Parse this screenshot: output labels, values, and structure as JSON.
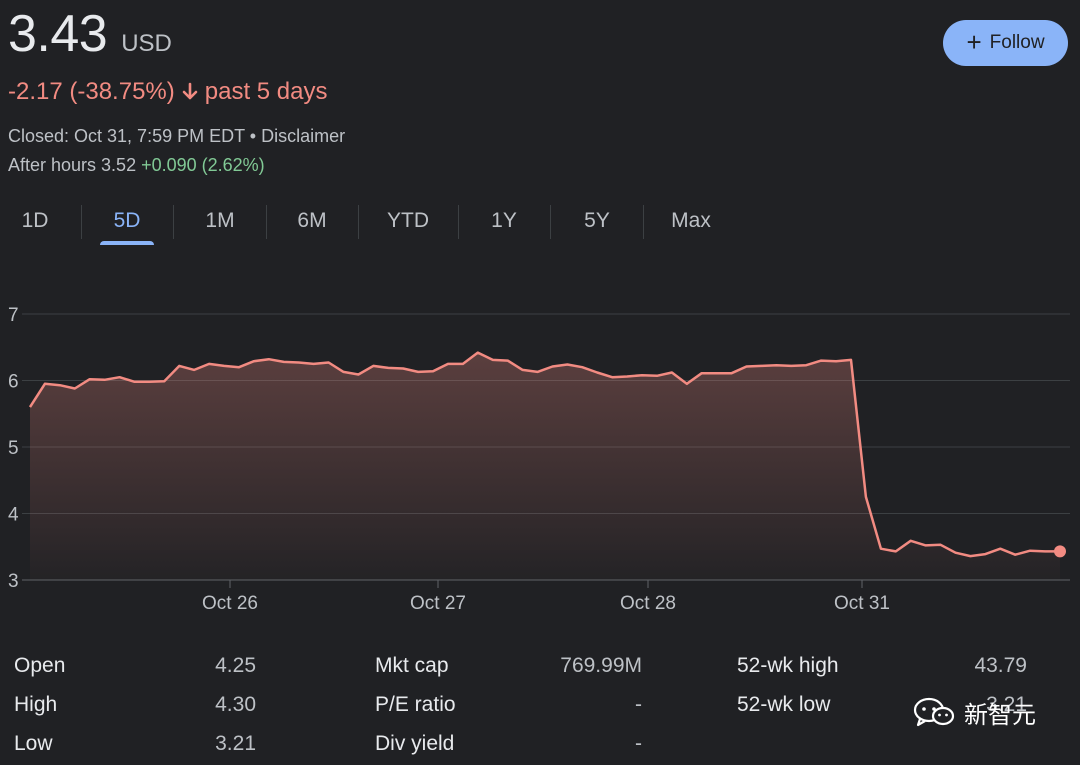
{
  "quote": {
    "price": "3.43",
    "currency": "USD",
    "change": "-2.17 (-38.75%)",
    "change_period": "past 5 days",
    "closed_text": "Closed: Oct 31, 7:59 PM EDT • Disclaimer",
    "after_hours_label": "After hours 3.52",
    "after_hours_change": "+0.090 (2.62%)"
  },
  "follow_label": "Follow",
  "tabs": [
    "1D",
    "5D",
    "1M",
    "6M",
    "YTD",
    "1Y",
    "5Y",
    "Max"
  ],
  "active_tab": "5D",
  "colors": {
    "line": "#f28b82",
    "accent": "#8ab4f8",
    "positive": "#81c995",
    "background": "#202124"
  },
  "chart_data": {
    "type": "area",
    "y_ticks": [
      "7",
      "6",
      "5",
      "4",
      "3"
    ],
    "ylim": [
      3,
      7
    ],
    "x_tick_labels": [
      "Oct 26",
      "Oct 27",
      "Oct 28",
      "Oct 31"
    ],
    "grid": true,
    "values": [
      5.6,
      5.95,
      5.93,
      5.88,
      6.02,
      6.01,
      6.05,
      5.98,
      5.98,
      5.99,
      6.22,
      6.16,
      6.25,
      6.22,
      6.2,
      6.29,
      6.32,
      6.28,
      6.27,
      6.25,
      6.27,
      6.13,
      6.09,
      6.22,
      6.19,
      6.18,
      6.13,
      6.14,
      6.25,
      6.25,
      6.42,
      6.31,
      6.3,
      6.16,
      6.13,
      6.21,
      6.24,
      6.2,
      6.12,
      6.05,
      6.06,
      6.08,
      6.07,
      6.12,
      5.95,
      6.11,
      6.11,
      6.11,
      6.21,
      6.22,
      6.23,
      6.22,
      6.23,
      6.3,
      6.29,
      6.31,
      4.25,
      3.47,
      3.43,
      3.59,
      3.52,
      3.53,
      3.41,
      3.36,
      3.39,
      3.47,
      3.38,
      3.44,
      3.43,
      3.43
    ]
  },
  "stats": {
    "col1": [
      [
        "Open",
        "4.25"
      ],
      [
        "High",
        "4.30"
      ],
      [
        "Low",
        "3.21"
      ]
    ],
    "col2": [
      [
        "Mkt cap",
        "769.99M"
      ],
      [
        "P/E ratio",
        "-"
      ],
      [
        "Div yield",
        "-"
      ]
    ],
    "col3": [
      [
        "52-wk high",
        "43.79"
      ],
      [
        "52-wk low",
        "3.21"
      ]
    ]
  },
  "watermark": "新智元"
}
